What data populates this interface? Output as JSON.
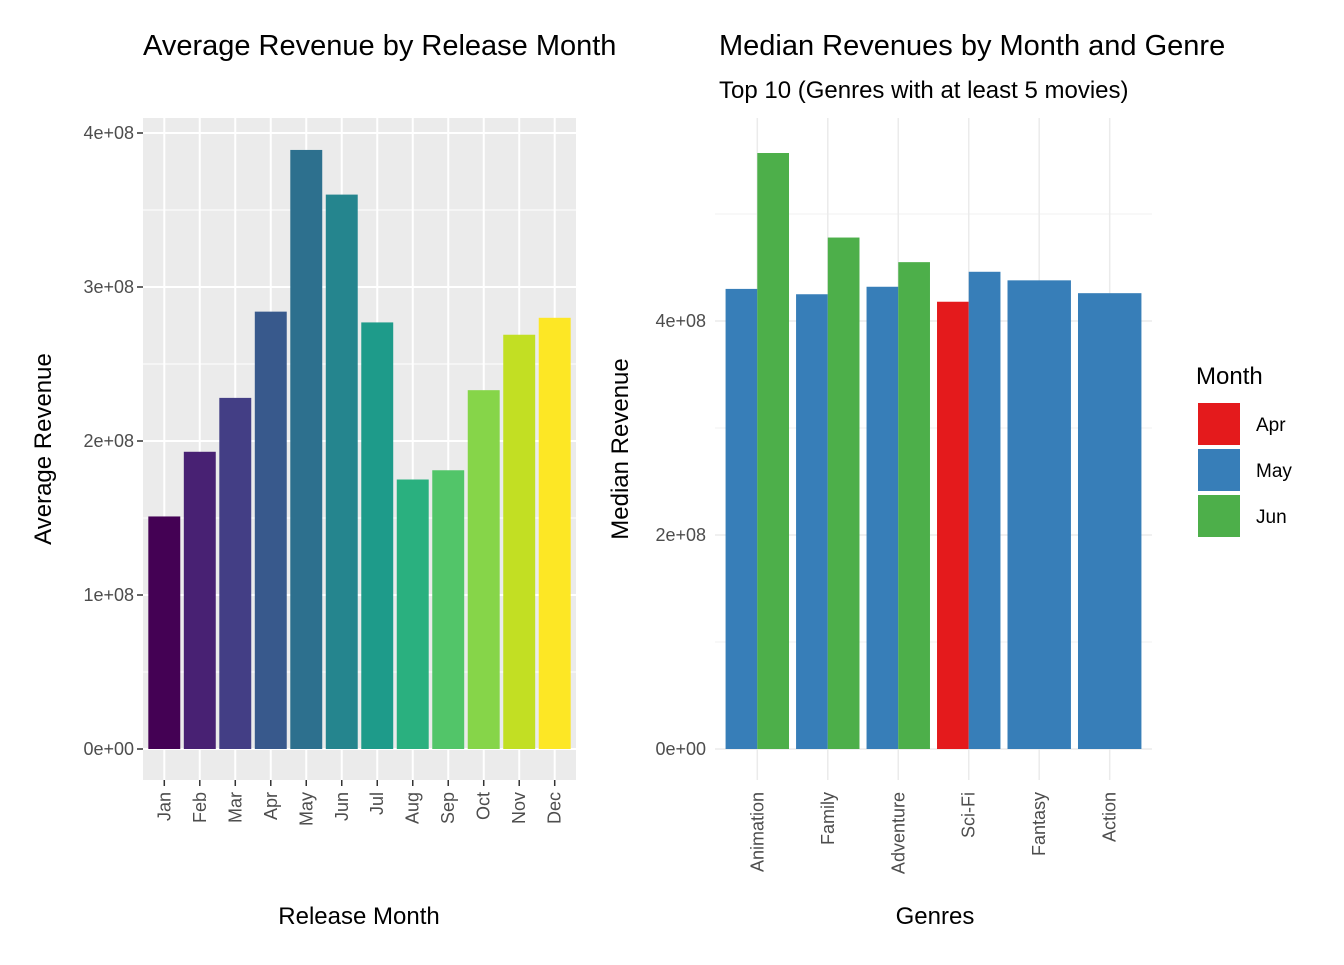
{
  "chart_data": [
    {
      "type": "bar",
      "title": "Average Revenue by Release Month",
      "xlabel": "Release Month",
      "ylabel": "Average Revenue",
      "ylim": [
        -20000000,
        400000000
      ],
      "yticks": [
        0,
        100000000,
        200000000,
        300000000,
        400000000
      ],
      "ytick_labels": [
        "0e+00",
        "1e+08",
        "2e+08",
        "3e+08",
        "4e+08"
      ],
      "grid": true,
      "background": "#ebebeb",
      "categories": [
        "Jan",
        "Feb",
        "Mar",
        "Apr",
        "May",
        "Jun",
        "Jul",
        "Aug",
        "Sep",
        "Oct",
        "Nov",
        "Dec"
      ],
      "values": [
        151000000,
        193000000,
        228000000,
        284000000,
        389000000,
        360000000,
        277000000,
        175000000,
        181000000,
        233000000,
        269000000,
        280000000
      ],
      "colors": [
        "#440154",
        "#482173",
        "#433e85",
        "#38598c",
        "#2d708e",
        "#25858e",
        "#1e9b8a",
        "#2ab07f",
        "#52c569",
        "#86d549",
        "#c2df23",
        "#fde725"
      ]
    },
    {
      "type": "bar",
      "title": "Median Revenues by Month and Genre",
      "subtitle": "Top 10 (Genres with at least 5 movies)",
      "xlabel": "Genres",
      "ylabel": "Median Revenue",
      "ylim": [
        0,
        560000000
      ],
      "yticks": [
        0,
        200000000,
        400000000
      ],
      "ytick_labels": [
        "0e+00",
        "2e+08",
        "4e+08"
      ],
      "grid": true,
      "background": "#ffffff",
      "categories": [
        "Animation",
        "Family",
        "Adventure",
        "Sci-Fi",
        "Fantasy",
        "Action"
      ],
      "legend": {
        "title": "Month",
        "position": "right",
        "entries": [
          {
            "label": "Apr",
            "color": "#e41a1c"
          },
          {
            "label": "May",
            "color": "#377eb8"
          },
          {
            "label": "Jun",
            "color": "#4daf4a"
          }
        ]
      },
      "groups": [
        {
          "category": "Animation",
          "bars": [
            {
              "month": "May",
              "value": 430000000
            },
            {
              "month": "Jun",
              "value": 557000000
            }
          ]
        },
        {
          "category": "Family",
          "bars": [
            {
              "month": "May",
              "value": 425000000
            },
            {
              "month": "Jun",
              "value": 478000000
            }
          ]
        },
        {
          "category": "Adventure",
          "bars": [
            {
              "month": "May",
              "value": 432000000
            },
            {
              "month": "Jun",
              "value": 455000000
            }
          ]
        },
        {
          "category": "Sci-Fi",
          "bars": [
            {
              "month": "Apr",
              "value": 418000000
            },
            {
              "month": "May",
              "value": 446000000
            }
          ]
        },
        {
          "category": "Fantasy",
          "bars": [
            {
              "month": "May",
              "value": 438000000
            }
          ]
        },
        {
          "category": "Action",
          "bars": [
            {
              "month": "May",
              "value": 426000000
            }
          ]
        }
      ]
    }
  ]
}
